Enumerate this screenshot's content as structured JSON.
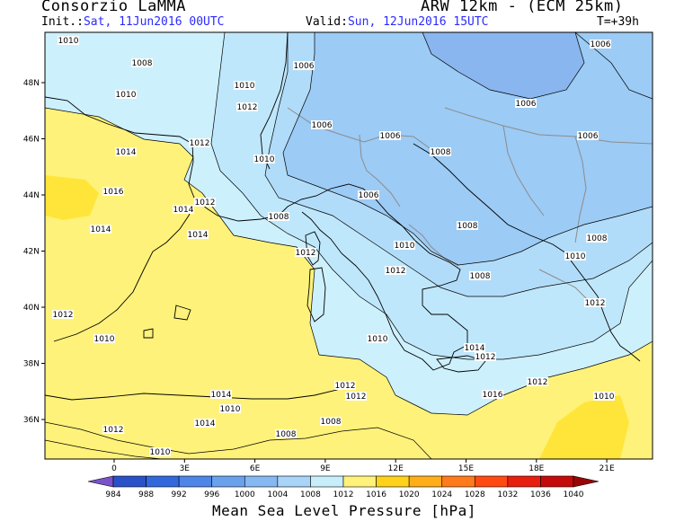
{
  "header": {
    "org": "Consorzio LaMMA",
    "model": "ARW 12km - (ECM 25km)",
    "init_label": "Init.:",
    "init_value": "Sat, 11Jun2016 00UTC",
    "valid_label": "Valid:",
    "valid_value": "Sun, 12Jun2016 15UTC",
    "timestep": "T=+39h"
  },
  "map": {
    "lat_ticks": [
      "48N",
      "46N",
      "44N",
      "42N",
      "40N",
      "38N",
      "36N"
    ],
    "lon_ticks": [
      "0",
      "3E",
      "6E",
      "9E",
      "12E",
      "15E",
      "18E",
      "21E"
    ],
    "isobar_labels": [
      {
        "text": "1010"
      },
      {
        "text": "1008"
      },
      {
        "text": "1006"
      },
      {
        "text": "1006"
      },
      {
        "text": "1010"
      },
      {
        "text": "1010"
      },
      {
        "text": "1012"
      },
      {
        "text": "1006"
      },
      {
        "text": "1012"
      },
      {
        "text": "1006"
      },
      {
        "text": "1006"
      },
      {
        "text": "1006"
      },
      {
        "text": "1014"
      },
      {
        "text": "1010"
      },
      {
        "text": "1016"
      },
      {
        "text": "1012"
      },
      {
        "text": "1006"
      },
      {
        "text": "1008"
      },
      {
        "text": "1014"
      },
      {
        "text": "1008"
      },
      {
        "text": "1014"
      },
      {
        "text": "1014"
      },
      {
        "text": "1008"
      },
      {
        "text": "1008"
      },
      {
        "text": "1012"
      },
      {
        "text": "1010"
      },
      {
        "text": "1010"
      },
      {
        "text": "1008"
      },
      {
        "text": "1012"
      },
      {
        "text": "1012"
      },
      {
        "text": "1012"
      },
      {
        "text": "1010"
      },
      {
        "text": "1010"
      },
      {
        "text": "1014"
      },
      {
        "text": "1012"
      },
      {
        "text": "1014"
      },
      {
        "text": "1012"
      },
      {
        "text": "1012"
      },
      {
        "text": "1012"
      },
      {
        "text": "1016"
      },
      {
        "text": "1010"
      },
      {
        "text": "1010"
      },
      {
        "text": "1014"
      },
      {
        "text": "1008"
      },
      {
        "text": "1012"
      },
      {
        "text": "1008"
      },
      {
        "text": "1010"
      }
    ]
  },
  "colorbar": {
    "title": "Mean Sea Level Pressure [hPa]",
    "unit": "hPa",
    "ticks": [
      "984",
      "988",
      "992",
      "996",
      "1000",
      "1004",
      "1008",
      "1012",
      "1016",
      "1020",
      "1024",
      "1028",
      "1032",
      "1036",
      "1040"
    ],
    "colors": [
      "#7b52c9",
      "#2a52c8",
      "#3169dc",
      "#4d86e6",
      "#6aa1ec",
      "#86b8f1",
      "#a7d4f7",
      "#c8eefb",
      "#fff27a",
      "#ffd21a",
      "#ffae1a",
      "#ff7a1a",
      "#ff4a12",
      "#e81e0e",
      "#c40a0a",
      "#9a0606"
    ],
    "levels": {
      "1004": "#8ab6ef",
      "1006": "#9ccbf5",
      "1008": "#b1dcf9",
      "1010": "#bfe7fb",
      "1012": "#cdf0fd",
      "1014": "#fff27a",
      "1016": "#ffe53a"
    }
  }
}
